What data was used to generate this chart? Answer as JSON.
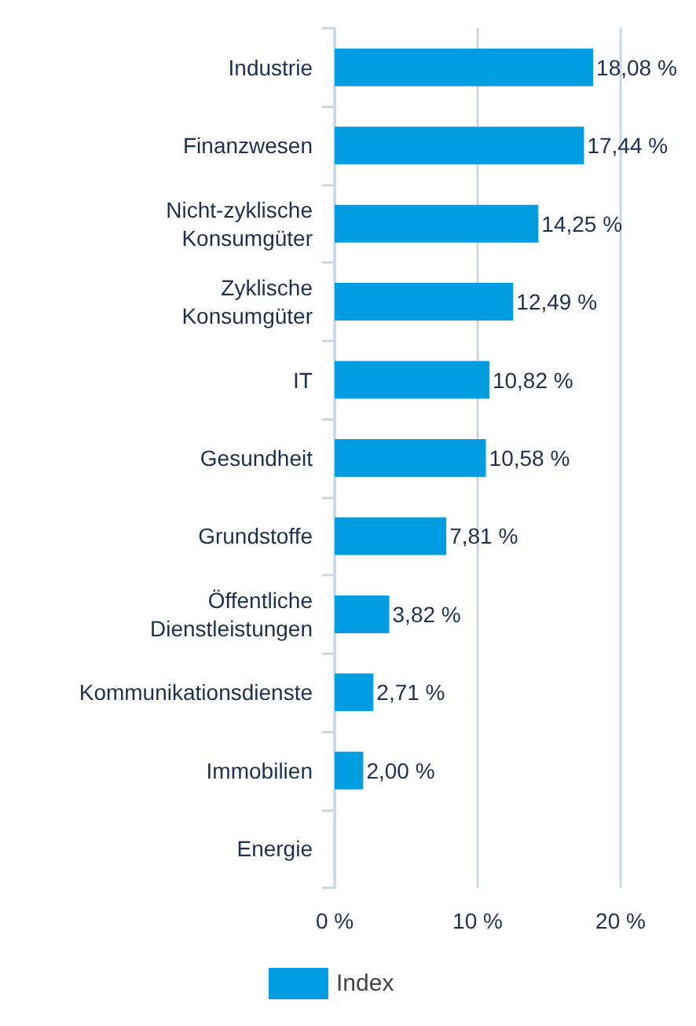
{
  "chart_data": {
    "type": "bar",
    "orientation": "horizontal",
    "categories": [
      "Industrie",
      "Finanzwesen",
      "Nicht-zyklische\nKonsumgüter",
      "Zyklische\nKonsumgüter",
      "IT",
      "Gesundheit",
      "Grundstoffe",
      "Öffentliche\nDienstleistungen",
      "Kommunikationsdienste",
      "Immobilien",
      "Energie"
    ],
    "series": [
      {
        "name": "Index",
        "color": "#009ee0",
        "values": [
          18.08,
          17.44,
          14.25,
          12.49,
          10.82,
          10.58,
          7.81,
          3.82,
          2.71,
          2.0,
          0
        ],
        "value_labels": [
          "18,08 %",
          "17,44 %",
          "14,25 %",
          "12,49 %",
          "10,82 %",
          "10,58 %",
          "7,81 %",
          "3,82 %",
          "2,71 %",
          "2,00 %",
          null
        ]
      }
    ],
    "xlim": [
      0,
      20
    ],
    "xticks": [
      {
        "value": 0,
        "label": "0 %"
      },
      {
        "value": 10,
        "label": "10 %"
      },
      {
        "value": 20,
        "label": "20 %"
      }
    ],
    "grid": "x",
    "legend": "bottom left"
  }
}
